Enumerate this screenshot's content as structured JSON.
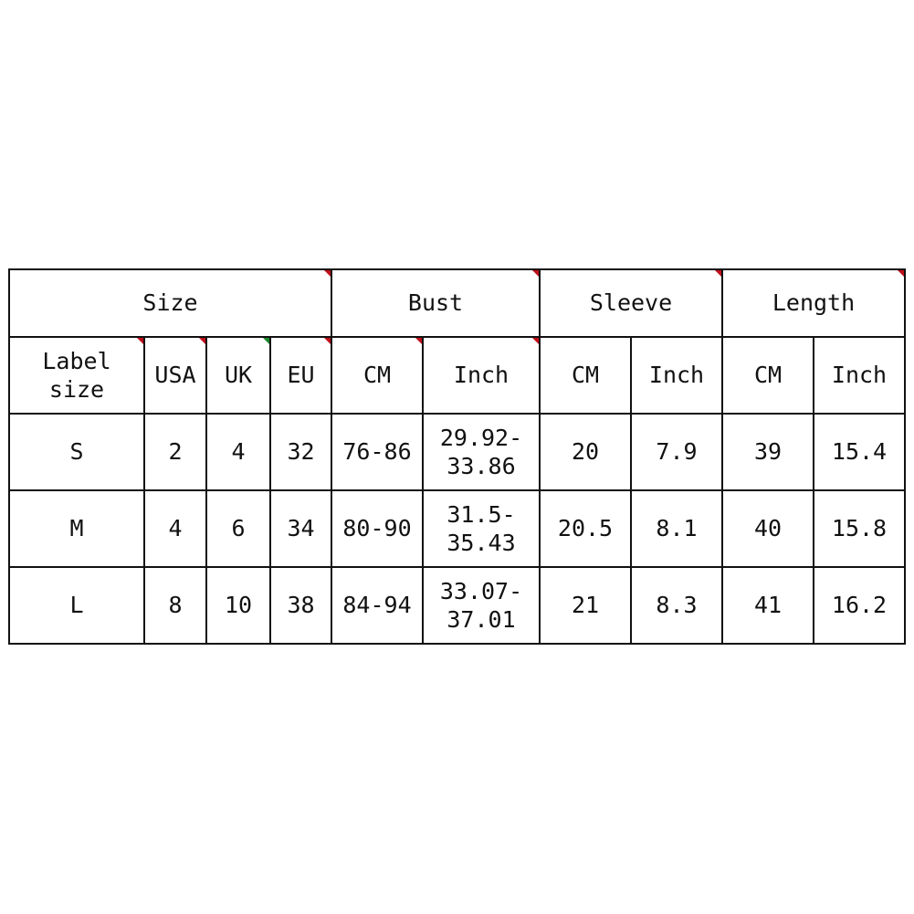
{
  "header": {
    "groups": [
      "Size",
      "Bust",
      "Sleeve",
      "Length"
    ],
    "sub": [
      "Label size",
      "USA",
      "UK",
      "EU",
      "CM",
      "Inch",
      "CM",
      "Inch",
      "CM",
      "Inch"
    ]
  },
  "rows": [
    [
      "S",
      "2",
      "4",
      "32",
      "76-86",
      "29.92-33.86",
      "20",
      "7.9",
      "39",
      "15.4"
    ],
    [
      "M",
      "4",
      "6",
      "34",
      "80-90",
      "31.5-35.43",
      "20.5",
      "8.1",
      "40",
      "15.8"
    ],
    [
      "L",
      "8",
      "10",
      "38",
      "84-94",
      "33.07-37.01",
      "21",
      "8.3",
      "41",
      "16.2"
    ]
  ]
}
